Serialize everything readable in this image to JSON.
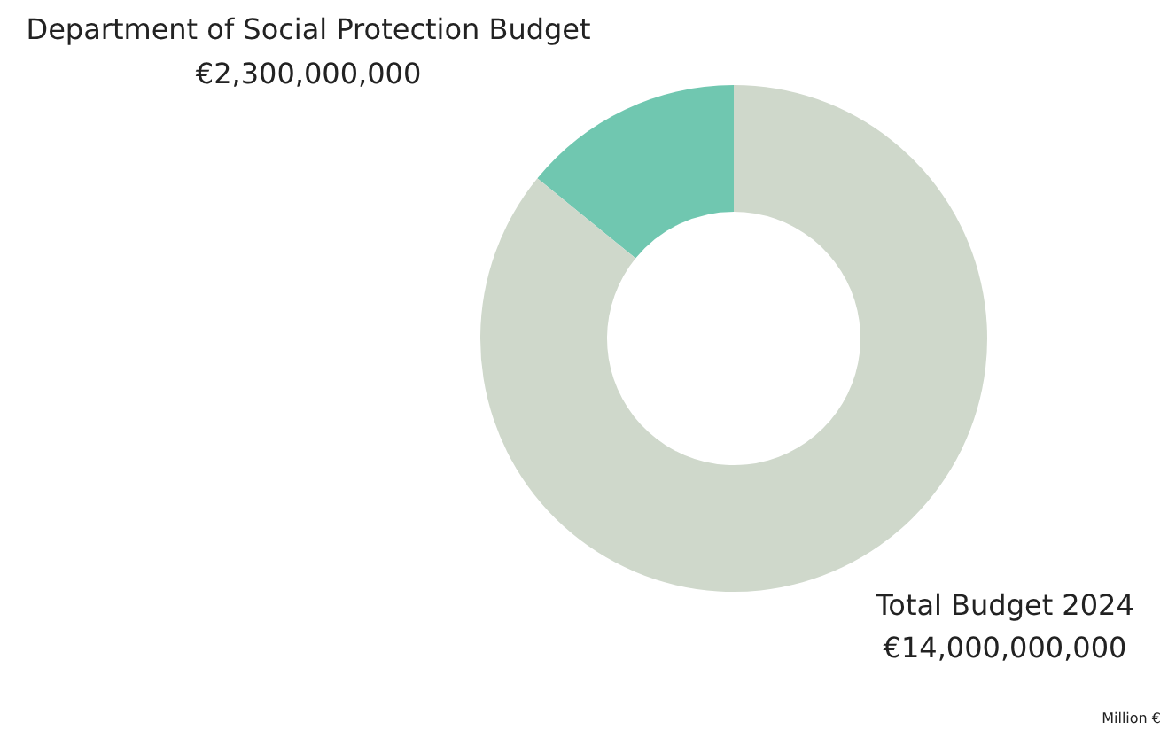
{
  "chart_data": {
    "type": "donut",
    "categories": [
      "Department of Social Protection Budget",
      "Total Budget 2024"
    ],
    "values": [
      2300000000,
      14000000000
    ],
    "colors": [
      "#70c7b0",
      "#cfd8cb"
    ],
    "value_labels": [
      "€2,300,000,000",
      "€14,000,000,000"
    ],
    "annotations": [
      "Million €"
    ],
    "legend": false
  }
}
